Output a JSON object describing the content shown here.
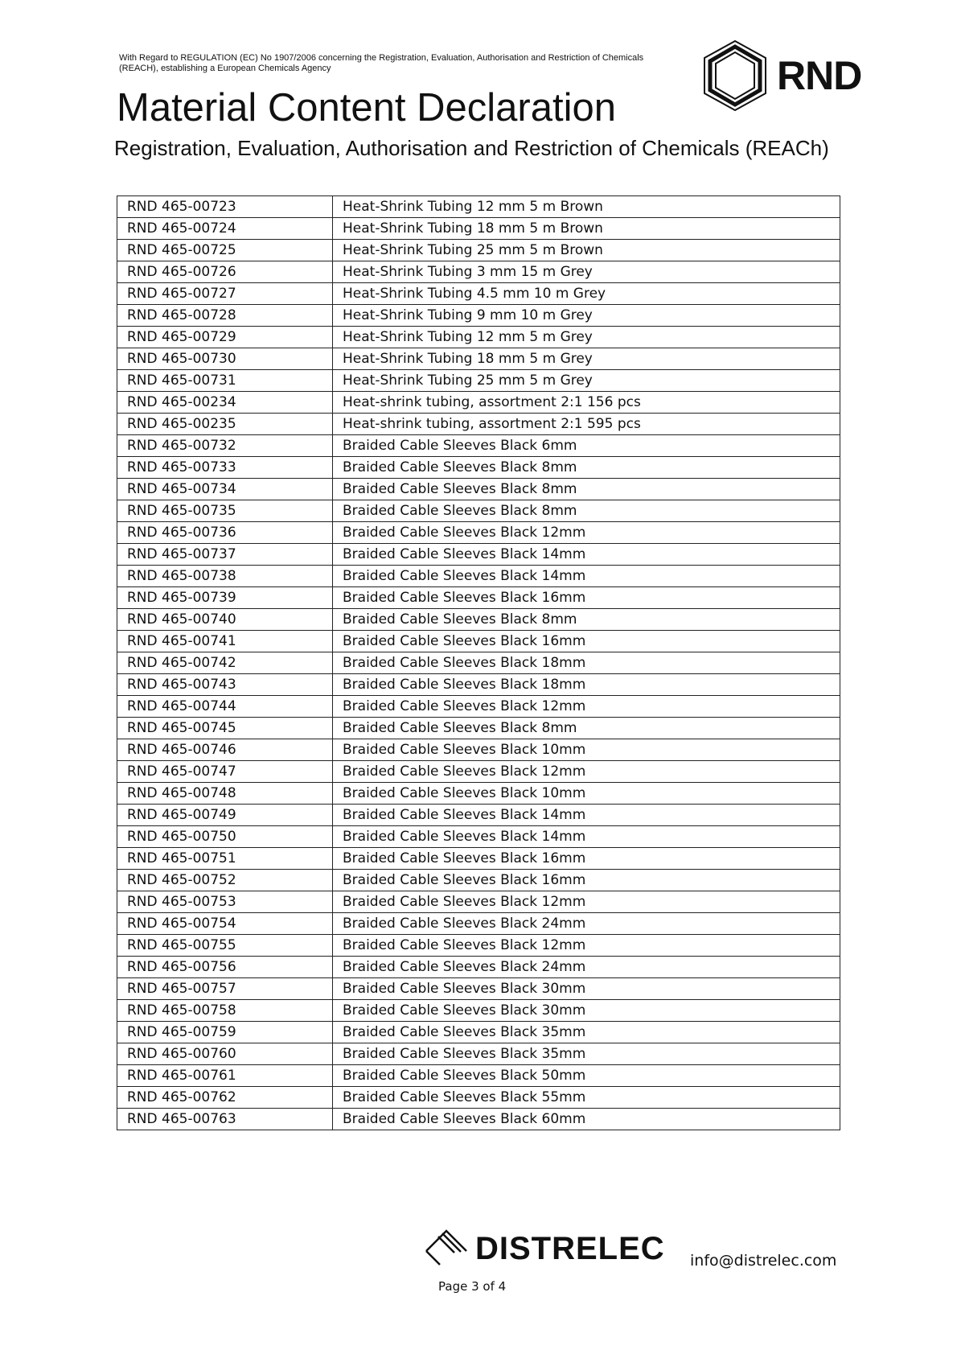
{
  "header": {
    "regulation": "With Regard to REGULATION (EC) No 1907/2006 concerning the Registration, Evaluation, Authorisation and Restriction of Chemicals (REACH), establishing a European Chemicals Agency",
    "title": "Material Content Declaration",
    "subtitle": "Registration, Evaluation, Authorisation and Restriction of Chemicals (REACh)",
    "logo": "RND"
  },
  "rows": [
    [
      "RND 465-00723",
      "Heat-Shrink Tubing 12 mm 5 m Brown"
    ],
    [
      "RND 465-00724",
      "Heat-Shrink Tubing 18 mm 5 m Brown"
    ],
    [
      "RND 465-00725",
      "Heat-Shrink Tubing 25 mm 5 m Brown"
    ],
    [
      "RND 465-00726",
      "Heat-Shrink Tubing 3 mm 15 m Grey"
    ],
    [
      "RND 465-00727",
      "Heat-Shrink Tubing 4.5 mm 10 m Grey"
    ],
    [
      "RND 465-00728",
      "Heat-Shrink Tubing 9 mm 10 m Grey"
    ],
    [
      "RND 465-00729",
      "Heat-Shrink Tubing 12 mm 5 m Grey"
    ],
    [
      "RND 465-00730",
      "Heat-Shrink Tubing 18 mm 5 m Grey"
    ],
    [
      "RND 465-00731",
      "Heat-Shrink Tubing 25 mm 5 m Grey"
    ],
    [
      "RND 465-00234",
      "Heat-shrink tubing, assortment 2:1 156 pcs"
    ],
    [
      "RND 465-00235",
      "Heat-shrink tubing, assortment 2:1 595 pcs"
    ],
    [
      "RND 465-00732",
      "Braided Cable Sleeves Black 6mm"
    ],
    [
      "RND 465-00733",
      "Braided Cable Sleeves Black 8mm"
    ],
    [
      "RND 465-00734",
      "Braided Cable Sleeves Black 8mm"
    ],
    [
      "RND 465-00735",
      "Braided Cable Sleeves Black 8mm"
    ],
    [
      "RND 465-00736",
      "Braided Cable Sleeves Black 12mm"
    ],
    [
      "RND 465-00737",
      "Braided Cable Sleeves Black 14mm"
    ],
    [
      "RND 465-00738",
      "Braided Cable Sleeves Black 14mm"
    ],
    [
      "RND 465-00739",
      "Braided Cable Sleeves Black 16mm"
    ],
    [
      "RND 465-00740",
      "Braided Cable Sleeves Black 8mm"
    ],
    [
      "RND 465-00741",
      "Braided Cable Sleeves Black 16mm"
    ],
    [
      "RND 465-00742",
      "Braided Cable Sleeves Black 18mm"
    ],
    [
      "RND 465-00743",
      "Braided Cable Sleeves Black 18mm"
    ],
    [
      "RND 465-00744",
      "Braided Cable Sleeves Black 12mm"
    ],
    [
      "RND 465-00745",
      "Braided Cable Sleeves Black 8mm"
    ],
    [
      "RND 465-00746",
      "Braided Cable Sleeves Black 10mm"
    ],
    [
      "RND 465-00747",
      "Braided Cable Sleeves Black 12mm"
    ],
    [
      "RND 465-00748",
      "Braided Cable Sleeves Black 10mm"
    ],
    [
      "RND 465-00749",
      "Braided Cable Sleeves Black 14mm"
    ],
    [
      "RND 465-00750",
      "Braided Cable Sleeves Black 14mm"
    ],
    [
      "RND 465-00751",
      "Braided Cable Sleeves Black 16mm"
    ],
    [
      "RND 465-00752",
      "Braided Cable Sleeves Black 16mm"
    ],
    [
      "RND 465-00753",
      "Braided Cable Sleeves Black 12mm"
    ],
    [
      "RND 465-00754",
      "Braided Cable Sleeves Black 24mm"
    ],
    [
      "RND 465-00755",
      "Braided Cable Sleeves Black 12mm"
    ],
    [
      "RND 465-00756",
      "Braided Cable Sleeves Black 24mm"
    ],
    [
      "RND 465-00757",
      "Braided Cable Sleeves Black 30mm"
    ],
    [
      "RND 465-00758",
      "Braided Cable Sleeves Black 30mm"
    ],
    [
      "RND 465-00759",
      "Braided Cable Sleeves Black 35mm"
    ],
    [
      "RND 465-00760",
      "Braided Cable Sleeves Black 35mm"
    ],
    [
      "RND 465-00761",
      "Braided Cable Sleeves Black 50mm"
    ],
    [
      "RND 465-00762",
      "Braided Cable Sleeves Black 55mm"
    ],
    [
      "RND 465-00763",
      "Braided Cable Sleeves Black 60mm"
    ]
  ],
  "footer": {
    "logo": "DISTRELEC",
    "page": "Page 3 of 4",
    "email": "info@distrelec.com"
  }
}
